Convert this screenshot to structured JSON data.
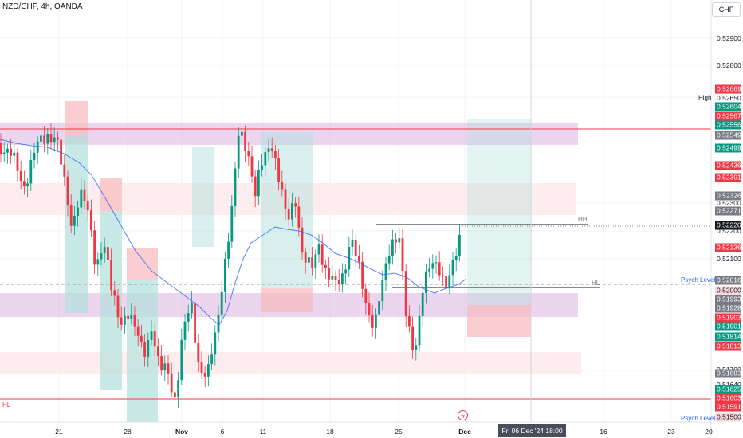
{
  "header": {
    "symbol_title": "NZD/CHF, 4h, OANDA",
    "currency_button": "CHF"
  },
  "price_axis": {
    "ticks": [
      "0.52900",
      "0.52800",
      "0.52650",
      "0.52300",
      "0.52200",
      "0.52100",
      "0.51700",
      "0.51640"
    ]
  },
  "price_tags": [
    {
      "value": "0.52669",
      "color": "#f23645"
    },
    {
      "value": "0.52604",
      "color": "#089981"
    },
    {
      "value": "0.52567",
      "color": "#f23645"
    },
    {
      "value": "0.52556",
      "color": "#089981"
    },
    {
      "value": "0.52549",
      "color": "#787b86"
    },
    {
      "value": "0.52499",
      "color": "#089981"
    },
    {
      "value": "0.52436",
      "color": "#f23645"
    },
    {
      "value": "0.52391",
      "color": "#f23645"
    },
    {
      "value": "0.52326",
      "color": "#787b86"
    },
    {
      "value": "0.52271",
      "color": "#787b86"
    },
    {
      "value": "0.52220",
      "color": "#131722"
    },
    {
      "value": "0.52136",
      "color": "#f23645"
    },
    {
      "value": "0.52016",
      "color": "#787b86"
    },
    {
      "value": "0.52000",
      "color": "#f7d9dc"
    },
    {
      "value": "0.51993",
      "color": "#787b86"
    },
    {
      "value": "0.51928",
      "color": "#787b86"
    },
    {
      "value": "0.51903",
      "color": "#f23645"
    },
    {
      "value": "0.51901",
      "color": "#089981"
    },
    {
      "value": "0.51814",
      "color": "#089981"
    },
    {
      "value": "0.51813",
      "color": "#f23645"
    },
    {
      "value": "0.51683",
      "color": "#787b86"
    },
    {
      "value": "0.51625",
      "color": "#089981"
    },
    {
      "value": "0.51603",
      "color": "#f23645"
    },
    {
      "value": "0.51591",
      "color": "#f23645"
    },
    {
      "value": "0.51500",
      "color": "#f7d9dc"
    }
  ],
  "labels": {
    "high": "High",
    "psych_level_top": "Psych Level",
    "psych_level_bottom": "Psych Level",
    "hh": "HH",
    "hl_right": "HL",
    "hl_left": "HL"
  },
  "time_axis": {
    "ticks": [
      "21",
      "28",
      "Nov",
      "6",
      "11",
      "18",
      "25",
      "Dec",
      "16",
      "23",
      "20"
    ],
    "crosshair_label": "Fri 06 Dec '24   18:00"
  },
  "colors": {
    "up": "#089981",
    "down": "#f23645",
    "ma": "#2962ff",
    "supply_zone": "#e1bee7",
    "demand_zone": "#b2dfdb"
  },
  "icons": {
    "events": "lightning-icon"
  }
}
